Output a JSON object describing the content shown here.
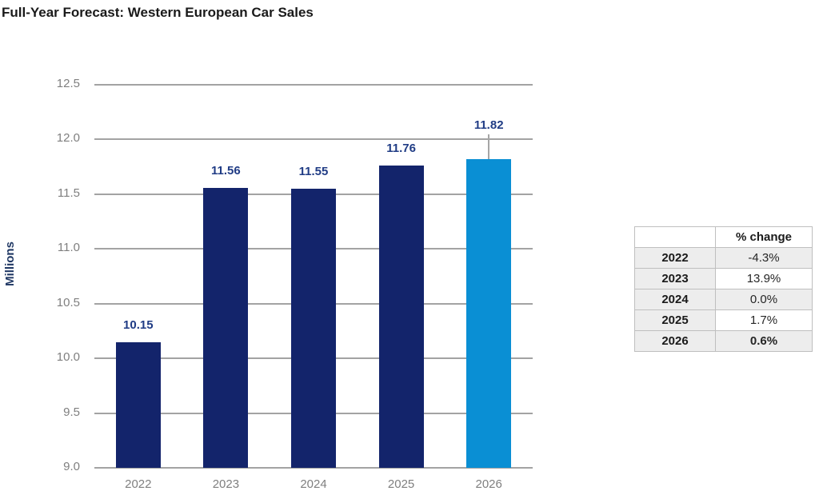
{
  "title": "Full-Year Forecast: Western European Car Sales",
  "chart_data": {
    "type": "bar",
    "title": "Full-Year Forecast: Western European Car Sales",
    "categories": [
      "2022",
      "2023",
      "2024",
      "2025",
      "2026"
    ],
    "values": [
      10.15,
      11.56,
      11.55,
      11.76,
      11.82
    ],
    "value_labels": [
      "10.15",
      "11.56",
      "11.55",
      "11.76",
      "11.82"
    ],
    "xlabel": "",
    "ylabel": "Millions",
    "ylim": [
      9.0,
      12.5
    ],
    "ytick_labels": [
      "12.5",
      "12.0",
      "11.5",
      "11.0",
      "10.5",
      "10.0",
      "9.5",
      "9.0"
    ],
    "grid": true,
    "legend": "none",
    "bar_colors": [
      "#13246b",
      "#13246b",
      "#13246b",
      "#13246b",
      "#0a8fd4"
    ],
    "highlight_color": "#0a8fd4",
    "base_color": "#13246b",
    "label_color": "#203c85",
    "axis_text_color": "#7f7f7f",
    "gridline_color": "#a3a3a3",
    "callout_index": 4
  },
  "table": {
    "header": [
      "",
      "% change"
    ],
    "rows": [
      {
        "year": "2022",
        "change": "-4.3%",
        "bold": false
      },
      {
        "year": "2023",
        "change": "13.9%",
        "bold": false
      },
      {
        "year": "2024",
        "change": "0.0%",
        "bold": false
      },
      {
        "year": "2025",
        "change": "1.7%",
        "bold": false
      },
      {
        "year": "2026",
        "change": "0.6%",
        "bold": true
      }
    ]
  }
}
